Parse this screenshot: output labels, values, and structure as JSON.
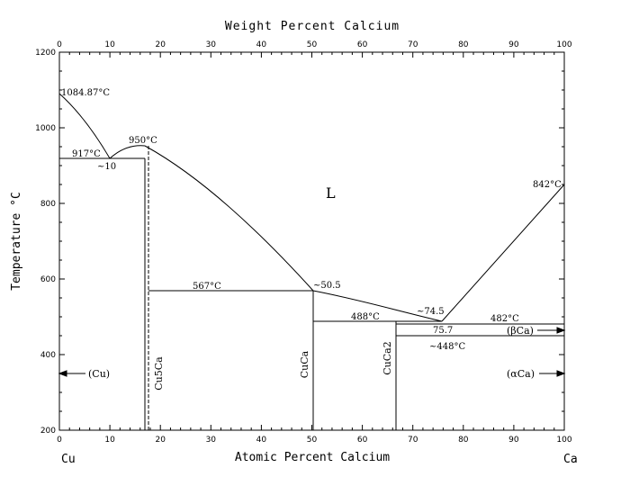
{
  "figure": {
    "top_axis_title": "Weight Percent Calcium",
    "bottom_axis_title": "Atomic Percent Calcium",
    "y_axis_title": "Temperature °C",
    "left_element": "Cu",
    "right_element": "Ca",
    "liquid_label": "L"
  },
  "chart_data": {
    "type": "phase-diagram",
    "x_axis": {
      "label": "Atomic Percent Calcium",
      "range": [
        0,
        100
      ],
      "ticks": [
        0,
        10,
        20,
        30,
        40,
        50,
        60,
        70,
        80,
        90,
        100
      ]
    },
    "top_axis": {
      "label": "Weight Percent Calcium",
      "range": [
        0,
        100
      ],
      "ticks": [
        0,
        10,
        20,
        30,
        40,
        50,
        60,
        70,
        80,
        90,
        100
      ]
    },
    "y_axis": {
      "label": "Temperature °C",
      "range": [
        200,
        1200
      ],
      "ticks": [
        200,
        400,
        600,
        800,
        1000,
        1200
      ]
    },
    "annotations": [
      {
        "text": "1084.87°C",
        "x": 0,
        "y": 1084.87
      },
      {
        "text": "917°C",
        "x": 10,
        "y": 917
      },
      {
        "text": "~10",
        "x": 10,
        "y": 917
      },
      {
        "text": "950°C",
        "x": 16.7,
        "y": 950
      },
      {
        "text": "567°C",
        "x": 29,
        "y": 567
      },
      {
        "text": "~50.5",
        "x": 50.5,
        "y": 567
      },
      {
        "text": "488°C",
        "x": 60,
        "y": 488
      },
      {
        "text": "~74.5",
        "x": 74.5,
        "y": 482
      },
      {
        "text": "75.7",
        "x": 75.7,
        "y": 482
      },
      {
        "text": "482°C",
        "x": 88,
        "y": 482
      },
      {
        "text": "~448°C",
        "x": 77,
        "y": 448
      },
      {
        "text": "842°C",
        "x": 100,
        "y": 842
      }
    ],
    "phases": [
      {
        "name": "(Cu)"
      },
      {
        "name": "Cu5Ca"
      },
      {
        "name": "CuCa"
      },
      {
        "name": "CuCa2"
      },
      {
        "name": "(βCa)"
      },
      {
        "name": "(αCa)"
      }
    ]
  }
}
